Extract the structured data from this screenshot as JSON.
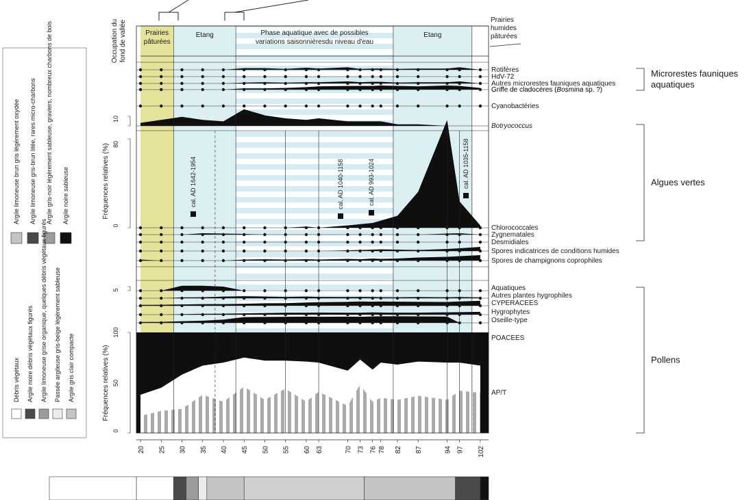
{
  "colors": {
    "black": "#0f0f0f",
    "yellow": "#e5e39a",
    "blue": "#dcf0f4",
    "stripe": "#d4ecf2",
    "grey_bar": "#aaaaaa",
    "dark_litho": "#4a4a4a",
    "mid_litho": "#9c9c9c",
    "light_litho": "#c4c4c4",
    "pale_litho": "#ececec"
  },
  "header": {
    "vertical_label": [
      "Occupation du",
      "fond de vallée"
    ],
    "zones": [
      {
        "label": [
          "Prairies",
          "pâturées"
        ],
        "from": 20,
        "to": 28,
        "style": "yellow"
      },
      {
        "label": [
          "Etang"
        ],
        "from": 28,
        "to": 43,
        "style": "blue"
      },
      {
        "label": [
          "Phase aquatique avec de possibles",
          "variations saisonnièresdu niveau d'eau"
        ],
        "from": 43,
        "to": 81,
        "style": "striped"
      },
      {
        "label": [
          "Etang"
        ],
        "from": 81,
        "to": 100,
        "style": "blue"
      }
    ],
    "right_label": [
      "Prairies",
      "humides",
      "pâturées"
    ]
  },
  "legend": {
    "title_row": [
      "Argile limoneuse brun gris légèrement oxydée",
      "Argile limoneuse gris-brun litée, rares micro-charbons",
      "Argile gris-noir légèrement sableuse, graviers, nombreux charbons de bois",
      "Argile noire sableuse"
    ],
    "bottom_row": [
      "Débris végétaux",
      "Argile noire débris végétaux figurés",
      "Argile limoneuse grise organique, quelques débris végétaux figurés",
      "Passée argileuse gris-beige légèrement sableuse",
      "Argile gris clair compacte"
    ]
  },
  "depth_axis": {
    "ticks": [
      20,
      25,
      30,
      35,
      40,
      45,
      50,
      55,
      60,
      63,
      70,
      73,
      76,
      78,
      82,
      87,
      94,
      97,
      102
    ],
    "range": [
      19,
      104
    ]
  },
  "groups": [
    {
      "label": [
        "Microrestes fauniques",
        "aquatiques"
      ]
    },
    {
      "label": [
        "Algues vertes"
      ]
    },
    {
      "label": [
        "Pollens"
      ]
    }
  ],
  "chart_data": {
    "type": "area",
    "title": "",
    "xlabel": "",
    "ylabel": "Fréquences relatives (%)",
    "x": [
      20,
      25,
      30,
      35,
      40,
      45,
      50,
      55,
      60,
      63,
      70,
      73,
      76,
      78,
      82,
      87,
      94,
      97,
      102
    ],
    "fauna": [
      {
        "name": "Rotifères",
        "values": [
          0,
          0,
          0,
          0,
          0,
          0.4,
          0.4,
          0.2,
          0.5,
          0.3,
          0.6,
          0.2,
          0.3,
          0.3,
          0.2,
          0.3,
          0.3,
          0.6,
          0
        ]
      },
      {
        "name": "HdV-72",
        "values": [
          0,
          0,
          0,
          0,
          0,
          0,
          0,
          0,
          0,
          0,
          0,
          0,
          0,
          0,
          0,
          0,
          0,
          0,
          0
        ]
      },
      {
        "name": "Autres microrestes fauniques aquatiques",
        "values": [
          0,
          0,
          0,
          0,
          0,
          0.2,
          0.3,
          0.2,
          0.3,
          0.3,
          0.5,
          0.3,
          0.4,
          0.4,
          0.2,
          0.3,
          0.3,
          0.5,
          0
        ]
      },
      {
        "name": "Griffe de cladocères (Bosmina sp. ?)",
        "values": [
          0,
          0,
          0,
          0,
          0,
          0.3,
          0.3,
          0.4,
          0.6,
          0.8,
          0.9,
          0.9,
          0.9,
          1,
          0.9,
          0.8,
          1,
          0.9,
          0.4
        ]
      },
      {
        "name": "Cyanobactéries",
        "values": [
          0,
          0,
          0,
          0,
          0,
          0,
          0,
          0,
          0,
          0,
          0,
          0,
          0,
          0,
          0,
          0,
          0,
          0,
          0
        ]
      },
      {
        "name": "Botryococcus",
        "values": [
          2,
          4,
          6,
          4,
          3,
          11,
          7,
          5,
          4,
          5,
          3,
          3,
          3,
          3,
          1,
          1,
          0,
          0,
          0
        ]
      }
    ],
    "algae": [
      {
        "name": "Chlorococcales",
        "values": [
          0,
          0,
          0,
          0,
          0,
          0,
          0,
          0,
          1,
          0,
          2,
          3,
          4,
          6,
          10,
          30,
          90,
          22,
          2
        ]
      },
      {
        "name": "Zygnematales",
        "values": [
          0,
          0,
          0,
          0.4,
          0.3,
          0.2,
          0,
          0,
          0,
          0,
          0,
          0,
          0,
          0,
          0,
          0,
          0.3,
          0.4,
          0
        ]
      },
      {
        "name": "Desmidiales",
        "values": [
          0,
          0,
          0,
          0,
          0,
          0,
          0,
          0,
          0,
          0,
          0,
          0,
          0,
          0,
          0,
          0,
          0,
          0,
          0
        ]
      },
      {
        "name": "Spores indicatrices de conditions humides",
        "values": [
          0,
          0,
          0,
          0,
          0,
          0,
          0,
          0,
          0,
          0,
          0.2,
          0.3,
          0.4,
          0.5,
          0.4,
          0.3,
          0.6,
          0.8,
          1.2
        ]
      },
      {
        "name": "Spores de champignons coprophiles",
        "values": [
          0.3,
          0,
          0,
          0,
          0,
          0.3,
          0.4,
          0.3,
          0.4,
          0.3,
          0.5,
          0.4,
          0.6,
          0.5,
          0.6,
          0.9,
          1.1,
          1.3,
          1.6
        ]
      }
    ],
    "pollen_small": [
      {
        "name": "Aquatiques",
        "values": [
          0,
          0,
          3,
          3,
          2.5,
          0,
          0,
          0,
          0,
          0,
          0,
          0,
          0,
          0,
          0,
          0,
          0,
          0,
          0
        ]
      },
      {
        "name": "Autres plantes hygrophiles",
        "values": [
          0,
          0,
          0.5,
          0.6,
          1,
          1.2,
          1,
          0.8,
          1,
          0.8,
          0.7,
          0.8,
          0.7,
          0.6,
          0.6,
          0.7,
          0.6,
          0.7,
          0.5
        ]
      },
      {
        "name": "CYPERACEES",
        "values": [
          0.5,
          0.6,
          0.8,
          1,
          1,
          1.2,
          1.5,
          1.6,
          2,
          2.2,
          2.4,
          2.6,
          2.5,
          2.6,
          2.5,
          2.4,
          2.3,
          2.6,
          3
        ]
      },
      {
        "name": "Hygrophytes",
        "values": [
          0,
          0,
          0.3,
          0.5,
          0.6,
          0.8,
          1,
          1.2,
          1.2,
          1.3,
          1.2,
          1.2,
          1.4,
          1.3,
          1.2,
          1.2,
          1.4,
          1.5,
          1.7
        ]
      },
      {
        "name": "Oseille-type",
        "values": [
          0.5,
          0.6,
          1,
          1.3,
          2,
          3.5,
          3.6,
          3.7,
          3.8,
          3.7,
          3.8,
          3.7,
          3.9,
          4,
          4,
          3.9,
          3.8,
          0,
          0
        ]
      }
    ],
    "pollen_main": {
      "poaceae_top": [
        38,
        45,
        58,
        67,
        70,
        75,
        72,
        72,
        71,
        70,
        62,
        73,
        63,
        70,
        68,
        71,
        70,
        70,
        67
      ],
      "ap_t": [
        17,
        22,
        24,
        38,
        31,
        46,
        33,
        44,
        31,
        41,
        27,
        48,
        31,
        35,
        33,
        37,
        33,
        42,
        40
      ],
      "labels": [
        "POACEES",
        "AP/T"
      ]
    },
    "dates": [
      "cal. AD 1642-1954",
      "cal. AD 1040-1158",
      "cal. AD 993-1024",
      "cal. AD 1035-1158"
    ],
    "scales": {
      "botryococcus": [
        "0",
        "10"
      ],
      "algae": [
        "0",
        "50",
        "80"
      ],
      "pollen_small": [
        "0",
        "5"
      ],
      "pollen_main": [
        "0",
        "50",
        "100"
      ]
    }
  }
}
